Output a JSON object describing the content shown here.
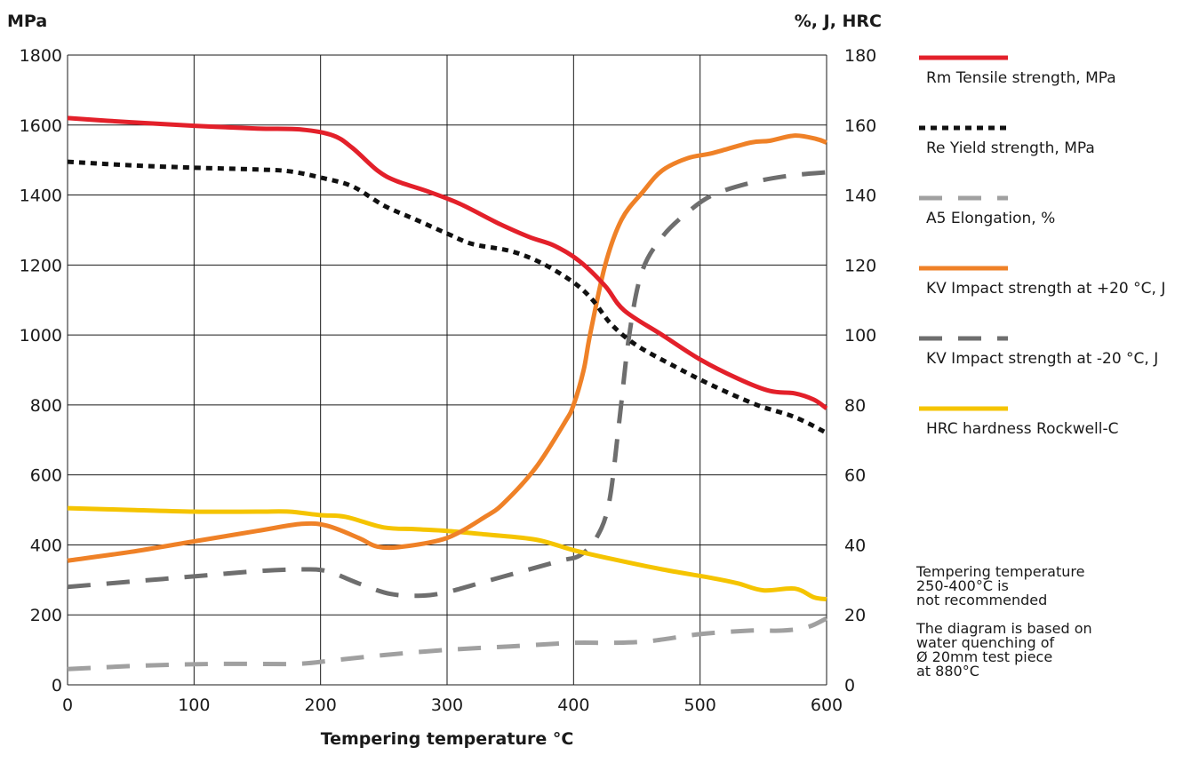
{
  "chart_data": {
    "type": "line",
    "title": "",
    "xlabel": "Tempering temperature °C",
    "ylabel_left": "MPa",
    "ylabel_right": "%, J, HRC",
    "xlim": [
      0,
      600
    ],
    "ylim_left": [
      0,
      1800
    ],
    "ylim_right": [
      0,
      180
    ],
    "x_ticks": [
      "0",
      "100",
      "200",
      "300",
      "400",
      "500",
      "600"
    ],
    "y_ticks_left": [
      "0",
      "200",
      "400",
      "600",
      "800",
      "1000",
      "1200",
      "1400",
      "1600",
      "1800"
    ],
    "y_ticks_right": [
      "0",
      "20",
      "40",
      "60",
      "80",
      "100",
      "120",
      "140",
      "160",
      "180"
    ],
    "grid": true,
    "legend_position": "right",
    "series": [
      {
        "key": "rm",
        "name": "Rm Tensile strength, MPa",
        "axis": "left",
        "color": "#e3202a",
        "style": "solid",
        "points": [
          [
            0,
            1620
          ],
          [
            50,
            1608
          ],
          [
            100,
            1598
          ],
          [
            150,
            1590
          ],
          [
            185,
            1587
          ],
          [
            210,
            1570
          ],
          [
            225,
            1535
          ],
          [
            245,
            1470
          ],
          [
            260,
            1440
          ],
          [
            285,
            1410
          ],
          [
            310,
            1375
          ],
          [
            340,
            1320
          ],
          [
            365,
            1280
          ],
          [
            385,
            1255
          ],
          [
            405,
            1210
          ],
          [
            425,
            1140
          ],
          [
            440,
            1070
          ],
          [
            470,
            1000
          ],
          [
            500,
            930
          ],
          [
            530,
            875
          ],
          [
            555,
            840
          ],
          [
            575,
            833
          ],
          [
            590,
            815
          ],
          [
            600,
            790
          ]
        ]
      },
      {
        "key": "re",
        "name": "Re Yield strength, MPa",
        "axis": "left",
        "color": "#111111",
        "style": "dotted",
        "points": [
          [
            0,
            1495
          ],
          [
            50,
            1485
          ],
          [
            100,
            1478
          ],
          [
            150,
            1473
          ],
          [
            175,
            1468
          ],
          [
            200,
            1450
          ],
          [
            225,
            1425
          ],
          [
            250,
            1370
          ],
          [
            275,
            1330
          ],
          [
            300,
            1290
          ],
          [
            320,
            1260
          ],
          [
            350,
            1240
          ],
          [
            375,
            1205
          ],
          [
            400,
            1150
          ],
          [
            415,
            1100
          ],
          [
            430,
            1030
          ],
          [
            450,
            970
          ],
          [
            480,
            910
          ],
          [
            510,
            855
          ],
          [
            545,
            800
          ],
          [
            575,
            765
          ],
          [
            600,
            720
          ]
        ]
      },
      {
        "key": "a5",
        "name": "A5 Elongation, %",
        "axis": "right",
        "color": "#a0a0a0",
        "style": "dashed",
        "points": [
          [
            0,
            4.5
          ],
          [
            60,
            5.5
          ],
          [
            120,
            6
          ],
          [
            180,
            6
          ],
          [
            210,
            7
          ],
          [
            250,
            8.5
          ],
          [
            300,
            10
          ],
          [
            350,
            11
          ],
          [
            400,
            12
          ],
          [
            430,
            12
          ],
          [
            460,
            12.5
          ],
          [
            500,
            14.5
          ],
          [
            540,
            15.5
          ],
          [
            565,
            15.5
          ],
          [
            585,
            16.5
          ],
          [
            600,
            19
          ]
        ]
      },
      {
        "key": "kv20",
        "name": "KV Impact strength at +20 °C, J",
        "axis": "right",
        "color": "#ef8127",
        "style": "solid",
        "points": [
          [
            0,
            35.5
          ],
          [
            50,
            38
          ],
          [
            100,
            41
          ],
          [
            150,
            44
          ],
          [
            185,
            46
          ],
          [
            205,
            45.5
          ],
          [
            230,
            42
          ],
          [
            245,
            39.5
          ],
          [
            265,
            39.5
          ],
          [
            300,
            42
          ],
          [
            330,
            48
          ],
          [
            345,
            52
          ],
          [
            370,
            62
          ],
          [
            393,
            75
          ],
          [
            400,
            80
          ],
          [
            408,
            90
          ],
          [
            413,
            100
          ],
          [
            425,
            120
          ],
          [
            438,
            133
          ],
          [
            455,
            141
          ],
          [
            470,
            147
          ],
          [
            490,
            150.5
          ],
          [
            510,
            152
          ],
          [
            540,
            155
          ],
          [
            555,
            155.5
          ],
          [
            575,
            157
          ],
          [
            592,
            156
          ],
          [
            600,
            155
          ]
        ]
      },
      {
        "key": "kvm20",
        "name": "KV Impact strength at -20 °C, J",
        "axis": "right",
        "color": "#6e6e6e",
        "style": "dashed",
        "points": [
          [
            0,
            28
          ],
          [
            50,
            29.5
          ],
          [
            100,
            31
          ],
          [
            150,
            32.5
          ],
          [
            185,
            33
          ],
          [
            205,
            32.5
          ],
          [
            230,
            29
          ],
          [
            255,
            26
          ],
          [
            280,
            25.5
          ],
          [
            300,
            26.5
          ],
          [
            330,
            29.5
          ],
          [
            360,
            32.5
          ],
          [
            390,
            35.5
          ],
          [
            405,
            37
          ],
          [
            418,
            42
          ],
          [
            428,
            52
          ],
          [
            436,
            75
          ],
          [
            444,
            100
          ],
          [
            454,
            118
          ],
          [
            470,
            128
          ],
          [
            490,
            135
          ],
          [
            510,
            140
          ],
          [
            540,
            143.5
          ],
          [
            570,
            145.5
          ],
          [
            600,
            146.5
          ]
        ]
      },
      {
        "key": "hrc",
        "name": "HRC hardness Rockwell-C",
        "axis": "right",
        "color": "#f5c400",
        "style": "solid",
        "points": [
          [
            0,
            50.5
          ],
          [
            50,
            50
          ],
          [
            100,
            49.5
          ],
          [
            150,
            49.5
          ],
          [
            175,
            49.5
          ],
          [
            200,
            48.5
          ],
          [
            220,
            48
          ],
          [
            250,
            45
          ],
          [
            275,
            44.5
          ],
          [
            300,
            44
          ],
          [
            330,
            43
          ],
          [
            370,
            41.5
          ],
          [
            400,
            38.5
          ],
          [
            430,
            36
          ],
          [
            470,
            33
          ],
          [
            510,
            30.5
          ],
          [
            530,
            29
          ],
          [
            550,
            27
          ],
          [
            575,
            27.5
          ],
          [
            590,
            25
          ],
          [
            600,
            24.5
          ]
        ]
      }
    ]
  },
  "notes": {
    "tempering": [
      "Tempering temperature",
      "250-400°C is",
      "not recommended"
    ],
    "basis": [
      "The diagram is based on",
      "water quenching of",
      "Ø 20mm test piece",
      "at 880°C"
    ]
  }
}
